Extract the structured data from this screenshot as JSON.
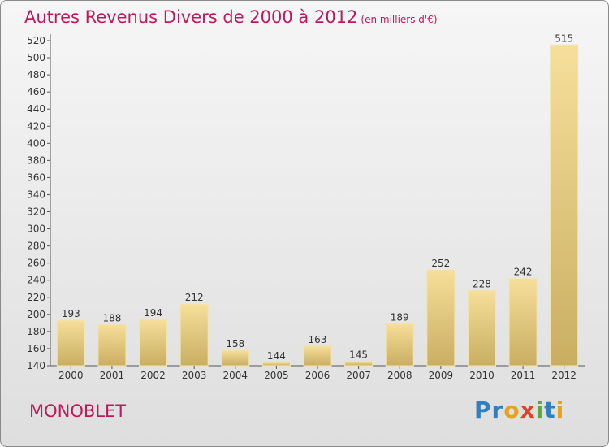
{
  "title": "Autres Revenus Divers de 2000 à 2012",
  "unit": "(en milliers d'€)",
  "place": "MONOBLET",
  "logo": {
    "letters": [
      "P",
      "r",
      "o",
      "x",
      "i",
      "t",
      "i"
    ],
    "colors": [
      "#2f7fc1",
      "#2f7fc1",
      "#e8a21a",
      "#d9462b",
      "#5aa83a",
      "#2f7fc1",
      "#e8a21a"
    ]
  },
  "colors": {
    "accent": "#c2185b",
    "bar_light": "#f6df9a",
    "bar_dark": "#c9ae62"
  },
  "chart_data": {
    "type": "bar",
    "title": "Autres Revenus Divers de 2000 à 2012",
    "categories": [
      "2000",
      "2001",
      "2002",
      "2003",
      "2004",
      "2005",
      "2006",
      "2007",
      "2008",
      "2009",
      "2010",
      "2011",
      "2012"
    ],
    "values": [
      193,
      188,
      194,
      212,
      158,
      144,
      163,
      145,
      189,
      252,
      228,
      242,
      515
    ],
    "ylim": [
      140,
      520
    ],
    "yticks": [
      140,
      160,
      180,
      200,
      220,
      240,
      260,
      280,
      300,
      320,
      340,
      360,
      380,
      400,
      420,
      440,
      460,
      480,
      500,
      520
    ],
    "grid": false,
    "legend": "none"
  }
}
